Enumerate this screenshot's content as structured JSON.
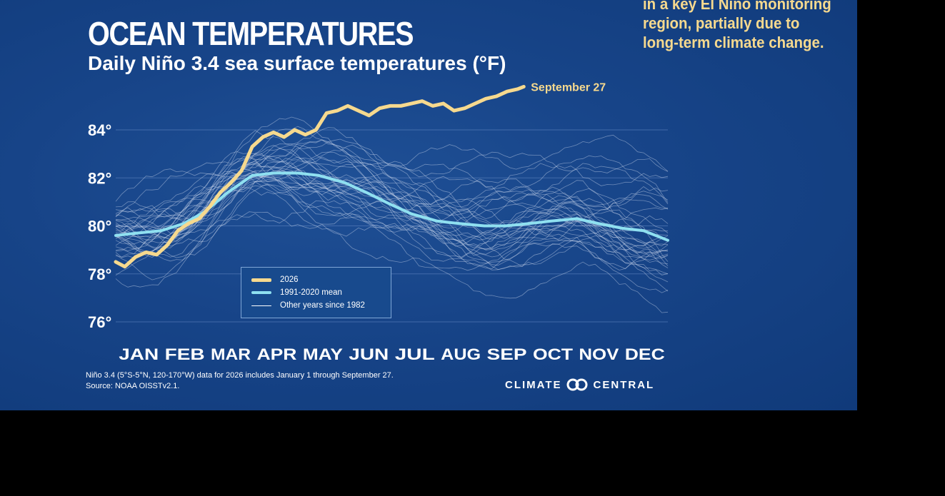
{
  "header": {
    "title": "OCEAN TEMPERATURES",
    "subtitle": "Daily Niño 3.4 sea surface temperatures (°F)"
  },
  "caption": "in a key El Niño monitoring\nregion, partially due to\nlong-term climate change.",
  "footer": {
    "note_line1": "Niño 3.4 (5°S-5°N, 120-170°W) data for 2026 includes January 1 through September 27.",
    "note_line2": "Source: NOAA OISSTv2.1.",
    "logo_left": "CLIMATE",
    "logo_right": "CENTRAL"
  },
  "colors": {
    "background": "#174488",
    "current_year": "#f6d98e",
    "mean": "#8fe0f0",
    "other_years": "#c8d4ec",
    "text": "#ffffff"
  },
  "chart_data": {
    "type": "line",
    "title": "Daily Niño 3.4 sea surface temperatures (°F)",
    "x_categories": [
      "JAN",
      "FEB",
      "MAR",
      "APR",
      "MAY",
      "JUN",
      "JUL",
      "AUG",
      "SEP",
      "OCT",
      "NOV",
      "DEC"
    ],
    "y_ticks": [
      76,
      78,
      80,
      82,
      84
    ],
    "y_tick_labels": [
      "76°",
      "78°",
      "80°",
      "82°",
      "84°"
    ],
    "ylim": [
      75.5,
      85.5
    ],
    "grid": true,
    "legend_position": "lower-center",
    "end_annotation": "September 27",
    "series": [
      {
        "name": "2026",
        "x_day": [
          1,
          7,
          14,
          21,
          28,
          35,
          42,
          49,
          56,
          63,
          70,
          77,
          84,
          91,
          98,
          105,
          112,
          119,
          126,
          133,
          140,
          147,
          154,
          161,
          168,
          175,
          182,
          189,
          196,
          203,
          210,
          217,
          224,
          231,
          238,
          245,
          252,
          259,
          266,
          270
        ],
        "values": [
          78.5,
          78.3,
          78.7,
          78.9,
          78.8,
          79.2,
          79.8,
          80.1,
          80.3,
          80.8,
          81.4,
          81.8,
          82.3,
          83.3,
          83.7,
          83.9,
          83.7,
          84.0,
          83.8,
          84.0,
          84.7,
          84.8,
          85.0,
          84.8,
          84.6,
          84.9,
          85.0,
          85.0,
          85.1,
          85.2,
          85.0,
          85.1,
          84.8,
          84.9,
          85.1,
          85.3,
          85.4,
          85.6,
          85.7,
          85.8
        ]
      },
      {
        "name": "1991-2020 mean",
        "x_day": [
          1,
          15,
          31,
          46,
          60,
          75,
          91,
          105,
          121,
          135,
          152,
          166,
          182,
          196,
          213,
          227,
          244,
          258,
          274,
          288,
          305,
          319,
          335,
          349,
          365
        ],
        "values": [
          79.6,
          79.7,
          79.8,
          80.1,
          80.6,
          81.4,
          82.1,
          82.2,
          82.2,
          82.1,
          81.8,
          81.4,
          80.9,
          80.5,
          80.2,
          80.1,
          80.0,
          80.0,
          80.1,
          80.2,
          80.3,
          80.1,
          79.9,
          79.8,
          79.4
        ]
      },
      {
        "name": "Other years since 1982",
        "values": []
      }
    ]
  }
}
